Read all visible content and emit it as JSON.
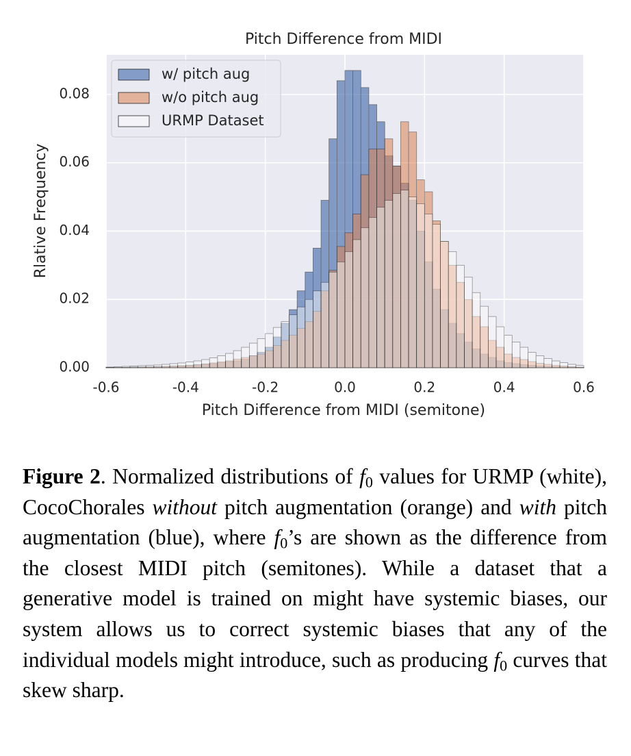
{
  "chart_data": {
    "type": "histogram",
    "title": "Pitch Difference from MIDI",
    "x_label": "Pitch Difference from MIDI (semitone)",
    "y_label": "Rlative Frequency",
    "bins": [
      -0.6,
      -0.58,
      -0.56,
      -0.54,
      -0.52,
      -0.5,
      -0.48,
      -0.46,
      -0.44,
      -0.42,
      -0.4,
      -0.38,
      -0.36,
      -0.34,
      -0.32,
      -0.3,
      -0.28,
      -0.26,
      -0.24,
      -0.22,
      -0.2,
      -0.18,
      -0.16,
      -0.14,
      -0.12,
      -0.1,
      -0.08,
      -0.06,
      -0.04,
      -0.02,
      0,
      0.02,
      0.04,
      0.06,
      0.08,
      0.1,
      0.12,
      0.14,
      0.16,
      0.18,
      0.2,
      0.22,
      0.24,
      0.26,
      0.28,
      0.3,
      0.32,
      0.34,
      0.36,
      0.38,
      0.4,
      0.42,
      0.44,
      0.46,
      0.48,
      0.5,
      0.52,
      0.54,
      0.56,
      0.58,
      0.6
    ],
    "series": [
      {
        "name": "w/ pitch aug",
        "color": "#4c72b0",
        "values": [
          0.0001,
          0.0001,
          0.0001,
          0.0002,
          0.0002,
          0.0002,
          0.0003,
          0.0003,
          0.0004,
          0.0005,
          0.0006,
          0.0008,
          0.001,
          0.0012,
          0.0015,
          0.0018,
          0.002,
          0.0025,
          0.0035,
          0.0045,
          0.006,
          0.009,
          0.013,
          0.017,
          0.0225,
          0.028,
          0.035,
          0.049,
          0.067,
          0.084,
          0.087,
          0.087,
          0.082,
          0.077,
          0.072,
          0.062,
          0.059,
          0.054,
          0.049,
          0.04,
          0.031,
          0.023,
          0.017,
          0.013,
          0.01,
          0.0075,
          0.0055,
          0.004,
          0.003,
          0.002,
          0.0015,
          0.0012,
          0.0009,
          0.0007,
          0.0005,
          0.0004,
          0.0003,
          0.0002,
          0.0002,
          0.0001
        ]
      },
      {
        "name": "w/o pitch aug",
        "color": "#dd8452",
        "values": [
          0.0001,
          0.0001,
          0.0001,
          0.0002,
          0.0002,
          0.0003,
          0.0003,
          0.0004,
          0.0005,
          0.0006,
          0.0007,
          0.0009,
          0.0011,
          0.0014,
          0.0017,
          0.002,
          0.0025,
          0.003,
          0.0035,
          0.004,
          0.005,
          0.0065,
          0.008,
          0.0095,
          0.0115,
          0.0135,
          0.0165,
          0.0225,
          0.0285,
          0.0355,
          0.0395,
          0.045,
          0.0565,
          0.064,
          0.064,
          0.067,
          0.059,
          0.072,
          0.069,
          0.055,
          0.0515,
          0.043,
          0.037,
          0.03,
          0.025,
          0.02,
          0.015,
          0.012,
          0.008,
          0.006,
          0.004,
          0.003,
          0.0024,
          0.0018,
          0.0013,
          0.001,
          0.0007,
          0.0005,
          0.0003,
          0.0002
        ]
      },
      {
        "name": "URMP Dataset",
        "color": "#ffffff",
        "values": [
          0.0002,
          0.0003,
          0.0004,
          0.0005,
          0.0006,
          0.0007,
          0.0008,
          0.001,
          0.0012,
          0.0014,
          0.0017,
          0.002,
          0.0024,
          0.0029,
          0.0035,
          0.0042,
          0.005,
          0.006,
          0.0072,
          0.0085,
          0.01,
          0.0118,
          0.0135,
          0.0155,
          0.0178,
          0.02,
          0.0225,
          0.025,
          0.028,
          0.031,
          0.034,
          0.0375,
          0.041,
          0.044,
          0.047,
          0.049,
          0.051,
          0.052,
          0.05,
          0.048,
          0.045,
          0.042,
          0.037,
          0.034,
          0.03,
          0.0265,
          0.022,
          0.018,
          0.015,
          0.012,
          0.0095,
          0.0075,
          0.006,
          0.0045,
          0.0035,
          0.0027,
          0.002,
          0.0015,
          0.001,
          0.0007
        ]
      }
    ],
    "xlim": [
      -0.6,
      0.6
    ],
    "ylim": [
      0,
      0.0916
    ],
    "xticks": [
      -0.6,
      -0.4,
      -0.2,
      {
        "value": 0,
        "label": "0.0"
      },
      0.2,
      0.4,
      0.6
    ],
    "yticks": [
      {
        "value": 0,
        "label": "0.00"
      },
      {
        "value": 0.02,
        "label": "0.02"
      },
      {
        "value": 0.04,
        "label": "0.04"
      },
      {
        "value": 0.06,
        "label": "0.06"
      },
      {
        "value": 0.08,
        "label": "0.08"
      }
    ],
    "grid": true,
    "legend": "upper left"
  },
  "caption": {
    "parts": [
      "Figure 2",
      ". Normalized distributions of ",
      "f",
      "0",
      " values for URMP (white), CocoChorales ",
      "without",
      " pitch augmentation (orange) and ",
      "with",
      " pitch augmentation (blue), where ",
      "f",
      "0",
      "’s are shown as the difference from the closest MIDI pitch (semitones). While a dataset that a generative model is trained on might have systemic biases, our system allows us to correct systemic biases that any of the individual models might introduce, such as producing ",
      "f",
      "0",
      " curves that skew sharp."
    ]
  }
}
